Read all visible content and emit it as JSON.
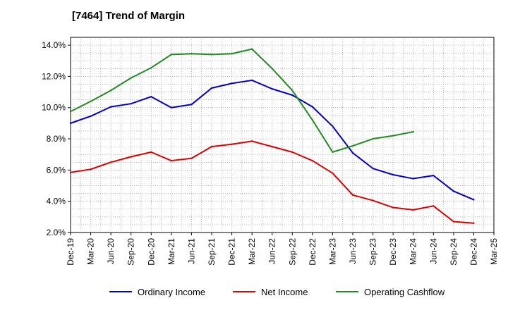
{
  "chart_data": {
    "type": "line",
    "title": "[7464]  Trend of Margin",
    "xlabel": "",
    "ylabel": "",
    "categories": [
      "Dec-19",
      "Mar-20",
      "Jun-20",
      "Sep-20",
      "Dec-20",
      "Mar-21",
      "Jun-21",
      "Sep-21",
      "Dec-21",
      "Mar-22",
      "Jun-22",
      "Sep-22",
      "Dec-22",
      "Mar-23",
      "Jun-23",
      "Sep-23",
      "Dec-23",
      "Mar-24",
      "Jun-24",
      "Sep-24",
      "Dec-24",
      "Mar-25"
    ],
    "y_ticks": [
      "2.0%",
      "4.0%",
      "6.0%",
      "8.0%",
      "10.0%",
      "12.0%",
      "14.0%"
    ],
    "ylim": [
      2.0,
      14.5
    ],
    "grid": true,
    "legend_position": "bottom",
    "series": [
      {
        "name": "Ordinary Income",
        "color": "#0000cc",
        "values": [
          9.0,
          9.45,
          10.05,
          10.25,
          10.7,
          10.0,
          10.2,
          11.25,
          11.55,
          11.75,
          11.2,
          10.8,
          10.05,
          8.8,
          7.1,
          6.1,
          5.7,
          5.45,
          5.65,
          4.65,
          4.1,
          null
        ]
      },
      {
        "name": "Net Income",
        "color": "#dd0000",
        "values": [
          5.85,
          6.05,
          6.5,
          6.85,
          7.15,
          6.6,
          6.75,
          7.5,
          7.65,
          7.85,
          7.5,
          7.15,
          6.6,
          5.8,
          4.4,
          4.05,
          3.6,
          3.45,
          3.7,
          2.7,
          2.6,
          null
        ]
      },
      {
        "name": "Operating Cashflow",
        "color": "#228b22",
        "values": [
          9.75,
          10.4,
          11.1,
          11.9,
          12.55,
          13.4,
          13.45,
          13.4,
          13.45,
          13.75,
          12.5,
          11.1,
          9.2,
          7.15,
          7.55,
          8.0,
          8.2,
          8.45,
          null,
          null,
          null,
          null
        ]
      }
    ]
  }
}
